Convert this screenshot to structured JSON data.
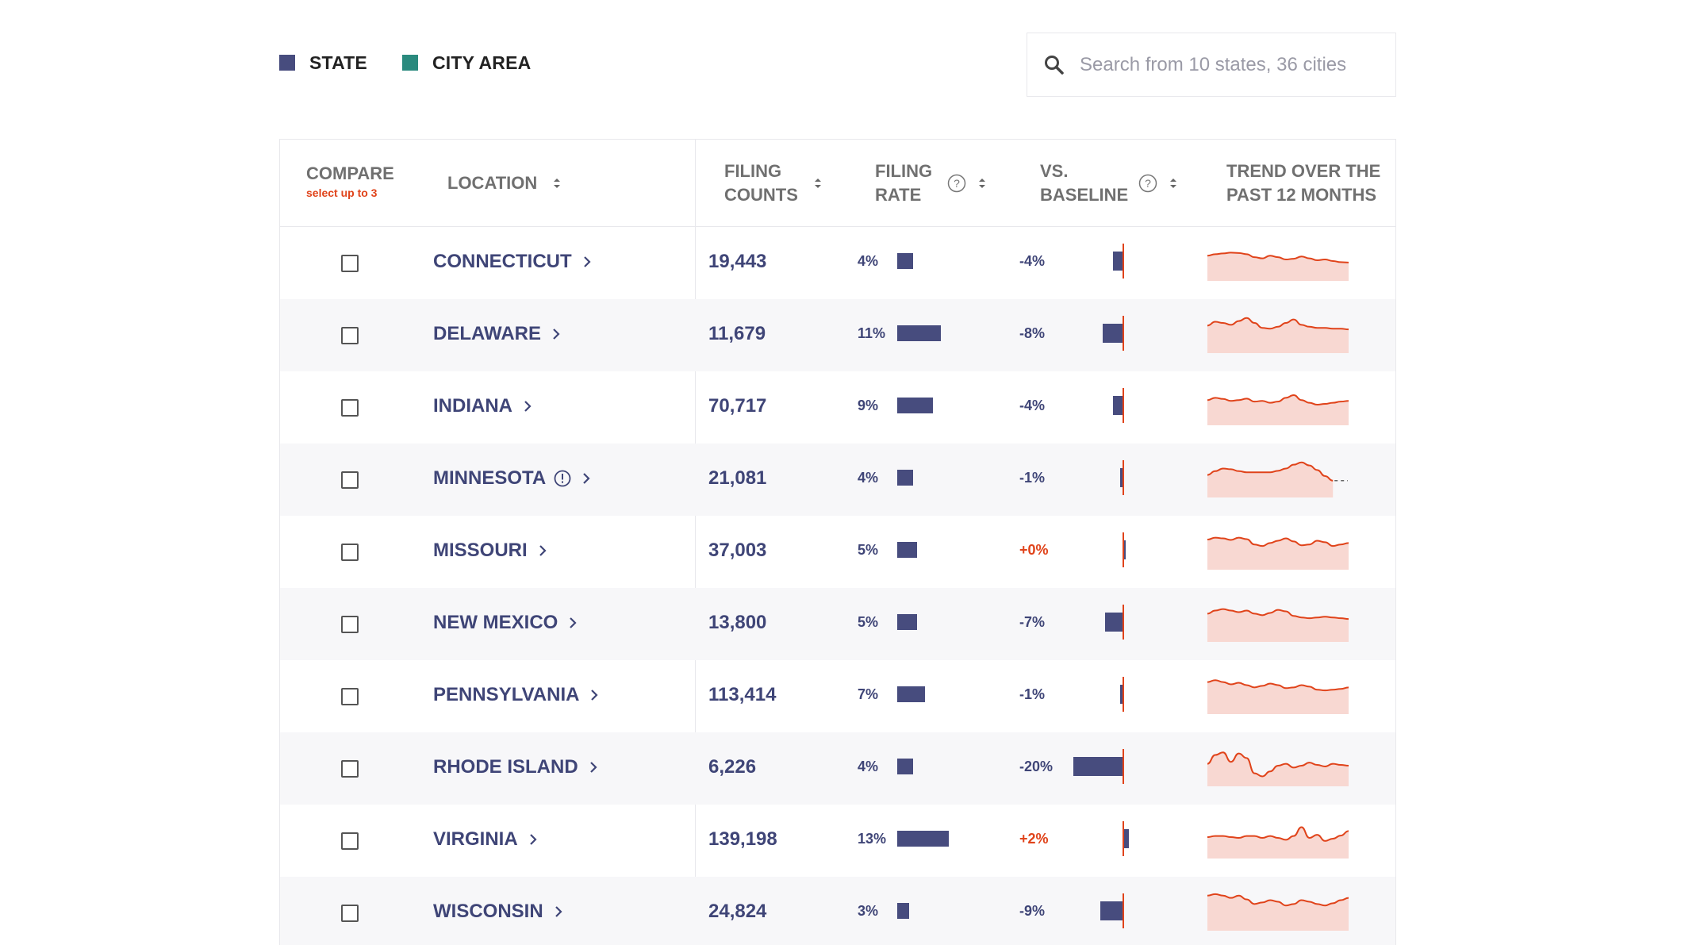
{
  "legend": [
    {
      "label": "STATE",
      "color": "#474c7e"
    },
    {
      "label": "CITY AREA",
      "color": "#2a8a7e"
    }
  ],
  "search": {
    "placeholder": "Search from 10 states, 36 cities"
  },
  "columns": {
    "compare": "COMPARE",
    "compare_sub": "select up to 3",
    "location": "LOCATION",
    "filing_counts_1": "FILING",
    "filing_counts_2": "COUNTS",
    "filing_rate_1": "FILING",
    "filing_rate_2": "RATE",
    "vs_baseline_1": "VS.",
    "vs_baseline_2": "BASELINE",
    "trend_1": "TREND OVER THE",
    "trend_2": "PAST 12 MONTHS"
  },
  "colors": {
    "accent": "#e0431a",
    "bar": "#474c7e",
    "spark_fill": "#f8d8d2"
  },
  "rows": [
    {
      "location": "CONNECTICUT",
      "count": "19,443",
      "rate": "4%",
      "rate_value": 4,
      "baseline": "-4%",
      "baseline_value": -4,
      "info": false,
      "trend": [
        0.62,
        0.66,
        0.68,
        0.7,
        0.69,
        0.66,
        0.58,
        0.55,
        0.62,
        0.58,
        0.52,
        0.54,
        0.6,
        0.55,
        0.5,
        0.52,
        0.48,
        0.45,
        0.44
      ]
    },
    {
      "location": "DELAWARE",
      "count": "11,679",
      "rate": "11%",
      "rate_value": 11,
      "baseline": "-8%",
      "baseline_value": -8,
      "info": false,
      "trend": [
        0.68,
        0.78,
        0.75,
        0.7,
        0.8,
        0.88,
        0.75,
        0.62,
        0.6,
        0.65,
        0.75,
        0.84,
        0.7,
        0.65,
        0.62,
        0.62,
        0.6,
        0.6,
        0.58
      ]
    },
    {
      "location": "INDIANA",
      "count": "70,717",
      "rate": "9%",
      "rate_value": 9,
      "baseline": "-4%",
      "baseline_value": -4,
      "info": false,
      "trend": [
        0.62,
        0.68,
        0.65,
        0.6,
        0.62,
        0.66,
        0.58,
        0.6,
        0.55,
        0.58,
        0.68,
        0.75,
        0.62,
        0.55,
        0.5,
        0.52,
        0.55,
        0.58,
        0.6
      ]
    },
    {
      "location": "MINNESOTA",
      "count": "21,081",
      "rate": "4%",
      "rate_value": 4,
      "baseline": "-1%",
      "baseline_value": -1,
      "info": true,
      "trend": [
        0.55,
        0.65,
        0.72,
        0.7,
        0.65,
        0.62,
        0.62,
        0.62,
        0.62,
        0.66,
        0.72,
        0.82,
        0.88,
        0.8,
        0.68,
        0.52,
        0.4
      ]
    },
    {
      "location": "MISSOURI",
      "count": "37,003",
      "rate": "5%",
      "rate_value": 5,
      "baseline": "+0%",
      "baseline_value": 0,
      "info": false,
      "trend": [
        0.75,
        0.8,
        0.78,
        0.74,
        0.8,
        0.76,
        0.62,
        0.58,
        0.66,
        0.72,
        0.78,
        0.7,
        0.6,
        0.62,
        0.72,
        0.68,
        0.58,
        0.62,
        0.66
      ]
    },
    {
      "location": "NEW MEXICO",
      "count": "13,800",
      "rate": "5%",
      "rate_value": 5,
      "baseline": "-7%",
      "baseline_value": -7,
      "info": false,
      "trend": [
        0.7,
        0.78,
        0.82,
        0.78,
        0.74,
        0.78,
        0.7,
        0.66,
        0.72,
        0.8,
        0.76,
        0.64,
        0.6,
        0.58,
        0.6,
        0.62,
        0.6,
        0.58,
        0.56
      ]
    },
    {
      "location": "PENNSYLVANIA",
      "count": "113,414",
      "rate": "7%",
      "rate_value": 7,
      "baseline": "-1%",
      "baseline_value": -1,
      "info": false,
      "trend": [
        0.8,
        0.85,
        0.8,
        0.74,
        0.78,
        0.72,
        0.66,
        0.7,
        0.76,
        0.72,
        0.64,
        0.66,
        0.72,
        0.68,
        0.6,
        0.58,
        0.6,
        0.62,
        0.66
      ]
    },
    {
      "location": "RHODE ISLAND",
      "count": "6,226",
      "rate": "4%",
      "rate_value": 4,
      "baseline": "-20%",
      "baseline_value": -20,
      "info": false,
      "trend": [
        0.55,
        0.78,
        0.85,
        0.6,
        0.82,
        0.7,
        0.3,
        0.22,
        0.35,
        0.5,
        0.55,
        0.45,
        0.5,
        0.58,
        0.52,
        0.48,
        0.55,
        0.52,
        0.5
      ]
    },
    {
      "location": "VIRGINIA",
      "count": "139,198",
      "rate": "13%",
      "rate_value": 13,
      "baseline": "+2%",
      "baseline_value": 2,
      "info": false,
      "trend": [
        0.52,
        0.55,
        0.55,
        0.52,
        0.5,
        0.55,
        0.55,
        0.5,
        0.55,
        0.5,
        0.45,
        0.55,
        0.78,
        0.5,
        0.58,
        0.42,
        0.48,
        0.56,
        0.68
      ]
    },
    {
      "location": "WISCONSIN",
      "count": "24,824",
      "rate": "3%",
      "rate_value": 3,
      "baseline": "-9%",
      "baseline_value": -9,
      "info": false,
      "trend": [
        0.88,
        0.92,
        0.88,
        0.82,
        0.88,
        0.78,
        0.66,
        0.7,
        0.76,
        0.72,
        0.62,
        0.66,
        0.76,
        0.72,
        0.66,
        0.62,
        0.68,
        0.76,
        0.82
      ]
    }
  ]
}
